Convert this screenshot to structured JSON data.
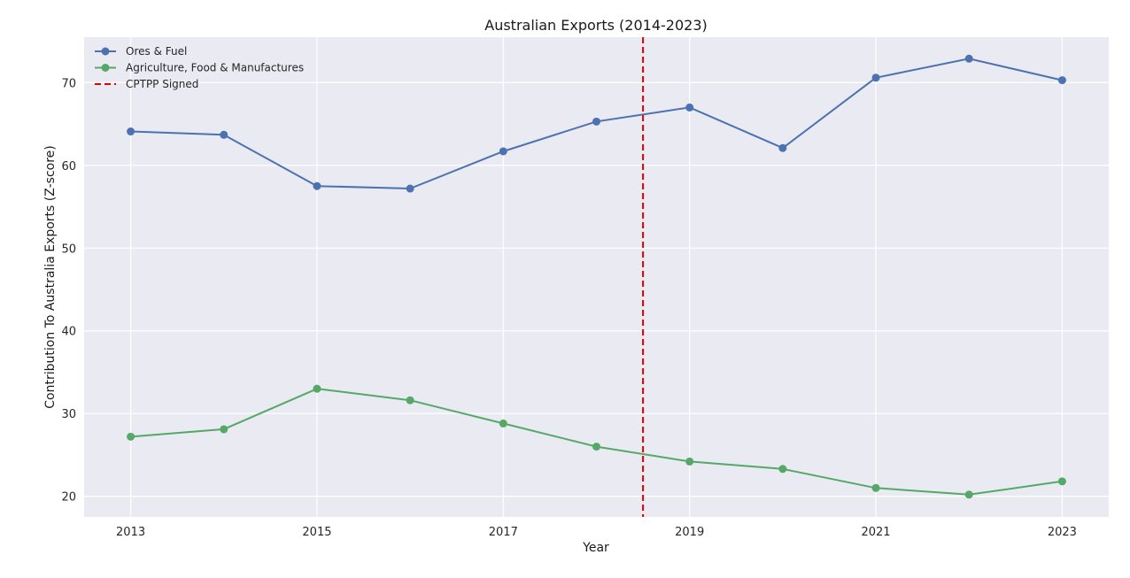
{
  "chart_data": {
    "type": "line",
    "title": "Australian Exports (2014-2023)",
    "xlabel": "Year",
    "ylabel": "Contribution To Australia Exports (Z-score)",
    "x": [
      2013,
      2014,
      2015,
      2016,
      2017,
      2018,
      2019,
      2020,
      2021,
      2022,
      2023
    ],
    "xlim": [
      2012.5,
      2023.5
    ],
    "ylim": [
      17.5,
      75.5
    ],
    "xticks": [
      2013,
      2015,
      2017,
      2019,
      2021,
      2023
    ],
    "yticks": [
      20,
      30,
      40,
      50,
      60,
      70
    ],
    "grid": true,
    "legend_position": "top-left",
    "series": [
      {
        "name": "Ores & Fuel",
        "color": "#4c72b0",
        "values": [
          64.1,
          63.7,
          57.5,
          57.2,
          61.7,
          65.3,
          67.0,
          62.1,
          70.6,
          72.9,
          70.3
        ]
      },
      {
        "name": "Agriculture, Food & Manufactures",
        "color": "#55a868",
        "values": [
          27.2,
          28.1,
          33.0,
          31.6,
          28.8,
          26.0,
          24.2,
          23.3,
          21.0,
          20.2,
          21.8
        ]
      }
    ],
    "annotations": [
      {
        "type": "vline",
        "x": 2018.5,
        "label": "CPTPP Signed",
        "color": "#e00000",
        "style": "dashed"
      }
    ]
  }
}
